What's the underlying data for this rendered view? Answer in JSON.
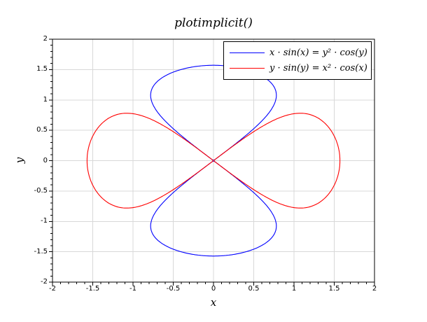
{
  "figure": {
    "background": "#ffffff"
  },
  "chart_data": {
    "type": "line",
    "subtype": "implicit-curves",
    "title": "plotimplicit()",
    "xlabel": "x",
    "ylabel": "y",
    "xlim": [
      -2,
      2
    ],
    "ylim": [
      -2,
      2
    ],
    "x_major_ticks": [
      -2,
      -1.5,
      -1,
      -0.5,
      0,
      0.5,
      1,
      1.5,
      2
    ],
    "y_major_ticks": [
      -2,
      -1.5,
      -1,
      -0.5,
      0,
      0.5,
      1,
      1.5,
      2
    ],
    "minor_ticks_per_major": 4,
    "grid": true,
    "grid_color": "#d8d8d8",
    "axis_color": "#000000",
    "legend_position": "upper-right",
    "legend_border_color": "#000000",
    "series": [
      {
        "label": "x · sin(x) = y² · cos(y)",
        "color": "#0000ff",
        "zero_expr": "x*sin(x) - y^2*cos(y)",
        "shape": "two vertical lobes meeting at the origin, closing at (0, +/-1.5708), crossing the origin along the diagonals",
        "symmetry": "mirror-symmetric in both axes",
        "quarter_lobe_points": [
          [
            0,
            0
          ],
          [
            0.199,
            0.2
          ],
          [
            0.389,
            0.4
          ],
          [
            0.561,
            0.6
          ],
          [
            0.696,
            0.8
          ],
          [
            0.773,
            1.0
          ],
          [
            0.781,
            1.076
          ],
          [
            0.758,
            1.2
          ],
          [
            0.595,
            1.4
          ],
          [
            0.404,
            1.5
          ],
          [
            0,
            1.5708
          ]
        ]
      },
      {
        "label": "y · sin(y) = x² · cos(x)",
        "color": "#ff0000",
        "zero_expr": "y*sin(y) - x^2*cos(x)",
        "shape": "two horizontal lobes meeting at the origin, closing at (+/-1.5708, 0), crossing the origin along the diagonals",
        "symmetry": "mirror-symmetric in both axes",
        "quarter_lobe_points": [
          [
            0,
            0
          ],
          [
            0.2,
            0.199
          ],
          [
            0.4,
            0.389
          ],
          [
            0.6,
            0.561
          ],
          [
            0.8,
            0.696
          ],
          [
            1.0,
            0.773
          ],
          [
            1.076,
            0.781
          ],
          [
            1.2,
            0.758
          ],
          [
            1.4,
            0.595
          ],
          [
            1.5,
            0.404
          ],
          [
            1.5708,
            0
          ]
        ]
      }
    ]
  }
}
